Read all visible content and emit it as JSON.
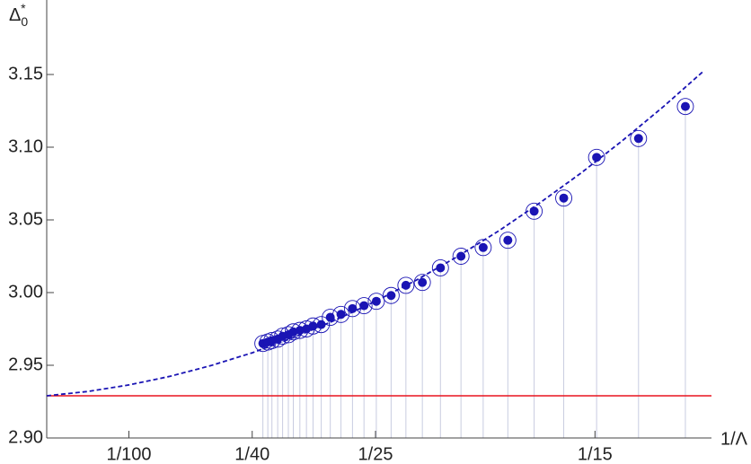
{
  "chart_data": {
    "type": "scatter",
    "x_label": "1/Λ",
    "y_label": {
      "base": "Δ",
      "sub": "0",
      "sup": "*"
    },
    "x": [
      0.0263,
      0.0269,
      0.0274,
      0.0281,
      0.0287,
      0.0294,
      0.03,
      0.0308,
      0.0316,
      0.0324,
      0.0334,
      0.0345,
      0.0358,
      0.0372,
      0.0386,
      0.0401,
      0.0419,
      0.0437,
      0.0457,
      0.0479,
      0.0504,
      0.0531,
      0.0561,
      0.0593,
      0.0629,
      0.0669,
      0.072,
      0.0777
    ],
    "values": [
      2.965,
      2.966,
      2.967,
      2.968,
      2.97,
      2.971,
      2.973,
      2.974,
      2.975,
      2.977,
      2.978,
      2.983,
      2.985,
      2.989,
      2.991,
      2.994,
      2.998,
      3.005,
      3.007,
      3.017,
      3.025,
      3.031,
      3.036,
      3.056,
      3.065,
      3.093,
      3.106,
      3.128
    ],
    "color": "#1a14b4",
    "fit": {
      "x": [
        0,
        0.005,
        0.01,
        0.015,
        0.02,
        0.025,
        0.03,
        0.035,
        0.04,
        0.045,
        0.05,
        0.055,
        0.06,
        0.065,
        0.07,
        0.075,
        0.08
      ],
      "values": [
        2.929,
        2.932,
        2.9365,
        2.9424,
        2.9498,
        2.9586,
        2.969,
        2.9808,
        2.994,
        3.0087,
        3.0249,
        3.0425,
        3.0617,
        3.0822,
        3.1043,
        3.1278,
        3.1528
      ],
      "color": "#1a14b4"
    },
    "hline": {
      "value": 2.929,
      "color": "#e8141e"
    },
    "xlim": [
      0,
      0.08
    ],
    "ylim": [
      2.9,
      3.2
    ],
    "xticks": [
      {
        "value": 0.01,
        "label": "1/100"
      },
      {
        "value": 0.025,
        "label": "1/40"
      },
      {
        "value": 0.04,
        "label": "1/25"
      },
      {
        "value": 0.0667,
        "label": "1/15"
      }
    ],
    "yticks": [
      {
        "value": 2.9,
        "label": "2.90"
      },
      2.95,
      {
        "value": 3.0,
        "label": "3.00"
      },
      3.05,
      {
        "value": 3.1,
        "label": "3.10"
      },
      3.15
    ]
  }
}
